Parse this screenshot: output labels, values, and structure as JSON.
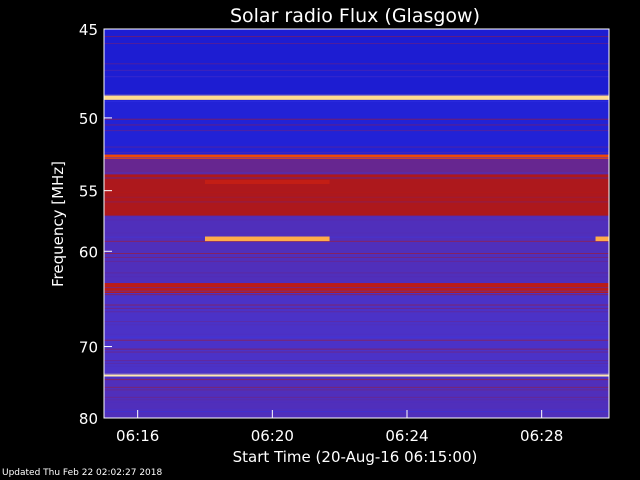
{
  "footer": {
    "updated": "Updated Thu Feb 22 02:02:27 2018"
  },
  "chart_data": {
    "type": "heatmap",
    "title": "Solar radio Flux (Glasgow)",
    "xlabel": "Start Time (20-Aug-16 06:15:00)",
    "ylabel": "Frequency [MHz]",
    "x_range_minutes_after_0615": [
      0,
      15
    ],
    "x_ticks": [
      {
        "label": "06:16",
        "minutes": 1
      },
      {
        "label": "06:20",
        "minutes": 5
      },
      {
        "label": "06:24",
        "minutes": 9
      },
      {
        "label": "06:28",
        "minutes": 13
      }
    ],
    "y_scale": "reciprocal",
    "ylim": [
      45,
      80
    ],
    "y_ticks": [
      45,
      50,
      55,
      60,
      70,
      80
    ],
    "colormap": [
      "#00007a",
      "#1a1ad0",
      "#3a3ae8",
      "#5a2aa8",
      "#7a2070",
      "#b01818",
      "#e02810",
      "#ff6a00",
      "#ffd070",
      "#fffbe0"
    ],
    "background_level": 0.25,
    "bands": [
      {
        "f_min": 45.0,
        "f_max": 48.6,
        "level": 0.12,
        "note": "deep blue top"
      },
      {
        "f_min": 48.6,
        "f_max": 48.9,
        "level": 0.92,
        "note": "bright white line"
      },
      {
        "f_min": 48.9,
        "f_max": 52.4,
        "level": 0.14
      },
      {
        "f_min": 52.4,
        "f_max": 52.7,
        "level": 0.72
      },
      {
        "f_min": 52.7,
        "f_max": 53.8,
        "level": 0.38
      },
      {
        "f_min": 53.8,
        "f_max": 57.0,
        "level": 0.55
      },
      {
        "f_min": 57.0,
        "f_max": 63.0,
        "level": 0.3
      },
      {
        "f_min": 63.0,
        "f_max": 64.0,
        "level": 0.58
      },
      {
        "f_min": 64.0,
        "f_max": 73.5,
        "level": 0.28
      },
      {
        "f_min": 73.5,
        "f_max": 73.9,
        "level": 0.95,
        "note": "bright orange/white line"
      },
      {
        "f_min": 73.9,
        "f_max": 80.0,
        "level": 0.3
      }
    ],
    "events": [
      {
        "t_start": 3.0,
        "t_end": 6.7,
        "f_min": 58.7,
        "f_max": 59.1,
        "level": 0.85
      },
      {
        "t_start": 3.0,
        "t_end": 6.7,
        "f_min": 54.2,
        "f_max": 54.5,
        "level": 0.6
      },
      {
        "t_start": 14.6,
        "t_end": 15.0,
        "f_min": 58.7,
        "f_max": 59.1,
        "level": 0.85
      }
    ]
  }
}
